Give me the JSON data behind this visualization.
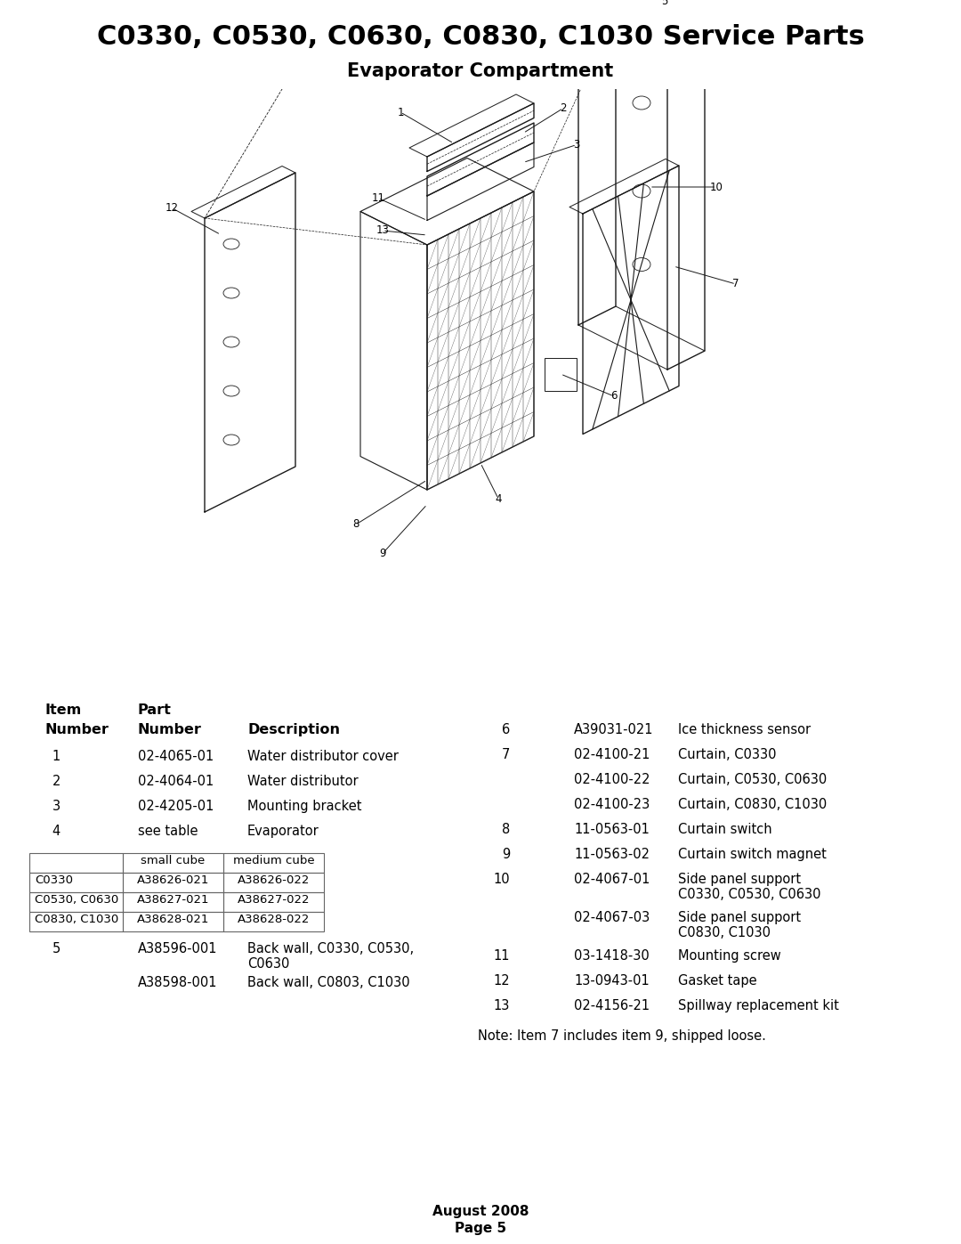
{
  "title": "C0330, C0530, C0630, C0830, C1030 Service Parts",
  "subtitle": "Evaporator Compartment",
  "bg_color": "#ffffff",
  "title_fontsize": 22,
  "subtitle_fontsize": 15,
  "table_headers": [
    "",
    "small cube",
    "medium cube"
  ],
  "table_rows": [
    [
      "C0330",
      "A38626-021",
      "A38626-022"
    ],
    [
      "C0530, C0630",
      "A38627-021",
      "A38627-022"
    ],
    [
      "C0830, C1030",
      "A38628-021",
      "A38628-022"
    ]
  ],
  "parts_left": [
    {
      "item": "1",
      "part": "02-4065-01",
      "desc": "Water distributor cover"
    },
    {
      "item": "2",
      "part": "02-4064-01",
      "desc": "Water distributor"
    },
    {
      "item": "3",
      "part": "02-4205-01",
      "desc": "Mounting bracket"
    },
    {
      "item": "4",
      "part": "see table",
      "desc": "Evaporator"
    }
  ],
  "parts_left2": [
    {
      "item": "5",
      "part": "A38596-001",
      "desc": "Back wall, C0330, C0530,\nC0630"
    },
    {
      "item": "",
      "part": "A38598-001",
      "desc": "Back wall, C0803, C1030"
    }
  ],
  "parts_right": [
    {
      "item": "6",
      "part": "A39031-021",
      "desc": "Ice thickness sensor",
      "nl": 0
    },
    {
      "item": "7",
      "part": "02-4100-21",
      "desc": "Curtain, C0330",
      "nl": 0
    },
    {
      "item": "",
      "part": "02-4100-22",
      "desc": "Curtain, C0530, C0630",
      "nl": 0
    },
    {
      "item": "",
      "part": "02-4100-23",
      "desc": "Curtain, C0830, C1030",
      "nl": 0
    },
    {
      "item": "8",
      "part": "11-0563-01",
      "desc": "Curtain switch",
      "nl": 0
    },
    {
      "item": "9",
      "part": "11-0563-02",
      "desc": "Curtain switch magnet",
      "nl": 0
    },
    {
      "item": "10",
      "part": "02-4067-01",
      "desc": "Side panel support\nC0330, C0530, C0630",
      "nl": 1
    },
    {
      "item": "",
      "part": "02-4067-03",
      "desc": "Side panel support\nC0830, C1030",
      "nl": 1
    },
    {
      "item": "11",
      "part": "03-1418-30",
      "desc": "Mounting screw",
      "nl": 0
    },
    {
      "item": "12",
      "part": "13-0943-01",
      "desc": "Gasket tape",
      "nl": 0
    },
    {
      "item": "13",
      "part": "02-4156-21",
      "desc": "Spillway replacement kit",
      "nl": 0
    }
  ],
  "note": "Note: Item 7 includes item 9, shipped loose.",
  "footer_line1": "August 2008",
  "footer_line2": "Page 5"
}
